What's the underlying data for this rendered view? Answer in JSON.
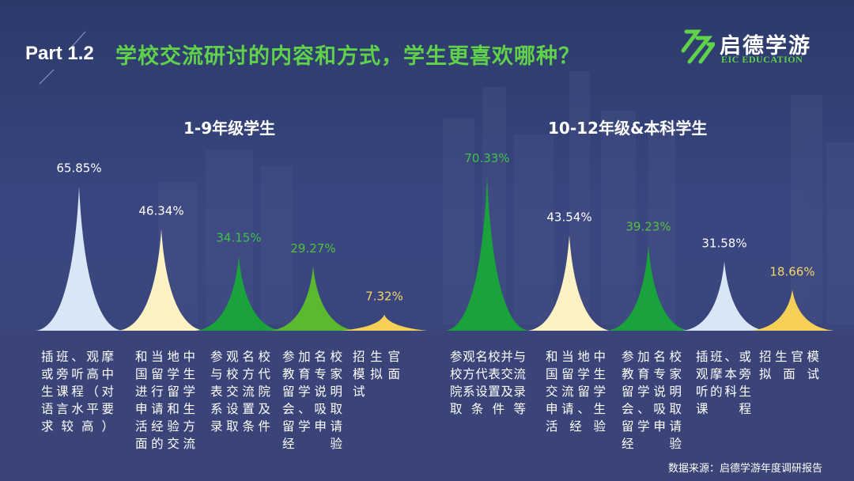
{
  "header": {
    "part": "Part 1.2",
    "title": "学校交流研讨的内容和方式，学生更喜欢哪种？"
  },
  "logo": {
    "name": "启德学游",
    "subtitle": "EIC EDUCATION",
    "color": "#5fd14a"
  },
  "source": "数据来源：启德学游年度调研报告",
  "chart_data": [
    {
      "type": "bar",
      "title": "1-9年级学生",
      "unit": "%",
      "categories": [
        "插班、观摩或旁听高中生课程（对语言水平要求较高）",
        "和当地中国留学生进行留学申请和生活经验方面的交流",
        "参观名校与校方代表交流院系设置及录取条件",
        "参加名校教育专家留学说明会、吸取留学申请经验",
        "招生官模拟面试"
      ],
      "values": [
        65.85,
        46.34,
        34.15,
        29.27,
        7.32
      ],
      "labels": [
        "65.85%",
        "46.34%",
        "34.15%",
        "29.27%",
        "7.32%"
      ],
      "colors": [
        "#d9e6f5",
        "#fdf2c4",
        "#1aa23c",
        "#5ab92e",
        "#f5cf56"
      ],
      "label_colors": [
        "#ffffff",
        "#ffffff",
        "#3cc449",
        "#57c13a",
        "#f5d56a"
      ]
    },
    {
      "type": "bar",
      "title": "10-12年级&本科学生",
      "unit": "%",
      "categories": [
        "参观名校并与校方代表交流院系设置及录取条件等",
        "和当地中国留学生交流留学申请、生活经验",
        "参加名校教育专家留学说明会、吸取留学申请经验",
        "插班、或观摩本旁听的科生课程",
        "招生官模拟面试"
      ],
      "values": [
        70.33,
        43.54,
        39.23,
        31.58,
        18.66
      ],
      "labels": [
        "70.33%",
        "43.54%",
        "39.23%",
        "31.58%",
        "18.66%"
      ],
      "colors": [
        "#1aa23c",
        "#fdf2c4",
        "#1aa23c",
        "#d9e6f5",
        "#f5cf56"
      ],
      "label_colors": [
        "#3cc449",
        "#ffffff",
        "#57c13a",
        "#ffffff",
        "#f5d56a"
      ]
    }
  ]
}
